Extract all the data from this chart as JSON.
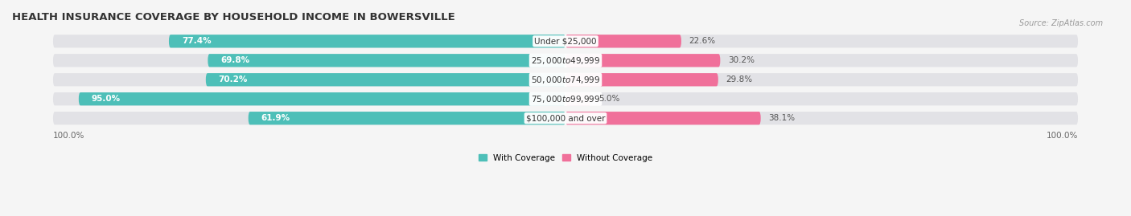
{
  "title": "HEALTH INSURANCE COVERAGE BY HOUSEHOLD INCOME IN BOWERSVILLE",
  "source": "Source: ZipAtlas.com",
  "categories": [
    "Under $25,000",
    "$25,000 to $49,999",
    "$50,000 to $74,999",
    "$75,000 to $99,999",
    "$100,000 and over"
  ],
  "with_coverage": [
    77.4,
    69.8,
    70.2,
    95.0,
    61.9
  ],
  "without_coverage": [
    22.6,
    30.2,
    29.8,
    5.0,
    38.1
  ],
  "color_with": "#4DBFB8",
  "color_without": "#F0709A",
  "color_without_light": "#F5A0C0",
  "bar_bg_color": "#E2E2E6",
  "fig_bg_color": "#F5F5F5",
  "legend_with": "With Coverage",
  "legend_without": "Without Coverage",
  "title_fontsize": 9.5,
  "label_fontsize": 7.5,
  "source_fontsize": 7,
  "tick_fontsize": 7.5,
  "bar_height": 0.68,
  "xlim_left": -108,
  "xlim_right": 108
}
